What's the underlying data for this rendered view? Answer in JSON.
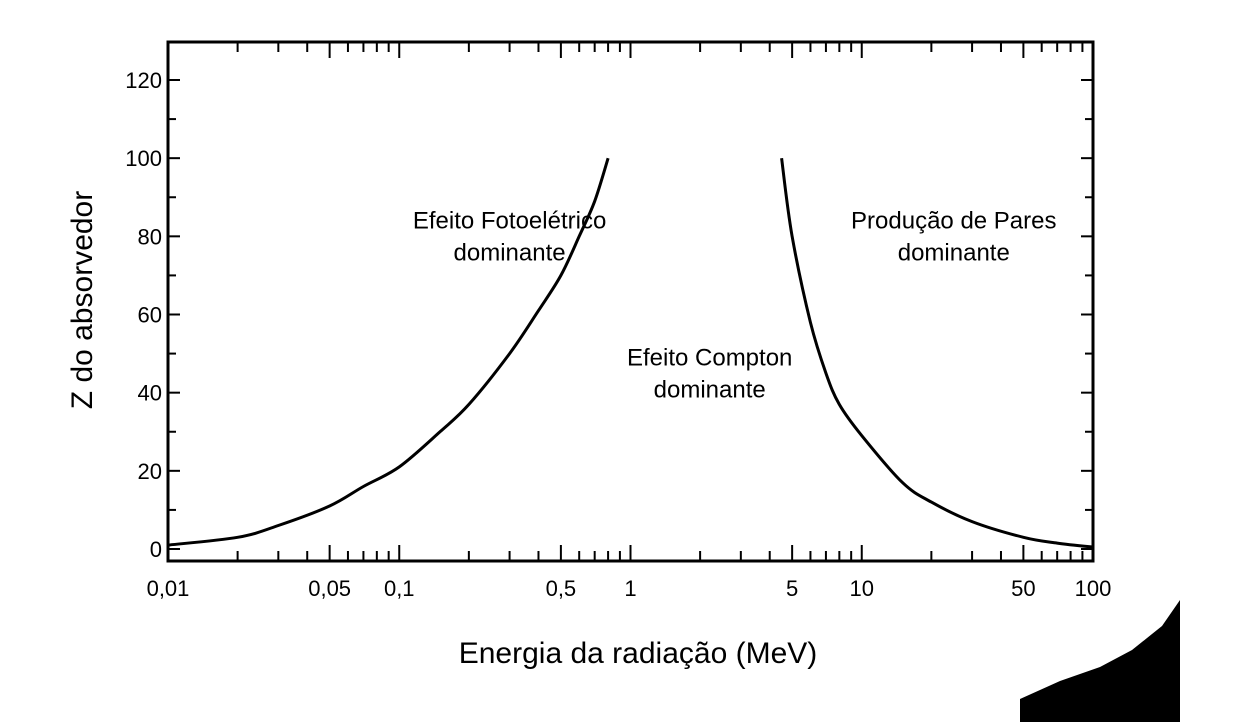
{
  "chart_data": {
    "type": "line",
    "xlabel": "Energia da radiação  (MeV)",
    "ylabel": "Z do absorvedor",
    "x_scale": "log",
    "xlim": [
      0.01,
      100
    ],
    "ylim": [
      0,
      120
    ],
    "x_tick_labels": [
      {
        "value": 0.01,
        "label": "0,01"
      },
      {
        "value": 0.05,
        "label": "0,05"
      },
      {
        "value": 0.1,
        "label": "0,1"
      },
      {
        "value": 0.5,
        "label": "0,5"
      },
      {
        "value": 1,
        "label": "1"
      },
      {
        "value": 5,
        "label": "5"
      },
      {
        "value": 10,
        "label": "10"
      },
      {
        "value": 50,
        "label": "50"
      },
      {
        "value": 100,
        "label": "100"
      }
    ],
    "y_ticks": [
      0,
      20,
      40,
      60,
      80,
      100,
      120
    ],
    "grid": false,
    "series": [
      {
        "x": [
          0.01,
          0.02,
          0.03,
          0.05,
          0.07,
          0.1,
          0.15,
          0.2,
          0.3,
          0.4,
          0.5,
          0.6,
          0.7,
          0.8
        ],
        "y": [
          1,
          3,
          6,
          11,
          16,
          21,
          30,
          37,
          50,
          61,
          70,
          80,
          89,
          100
        ]
      },
      {
        "x": [
          4.5,
          5,
          6,
          7,
          8,
          10,
          15,
          20,
          30,
          50,
          70,
          100
        ],
        "y": [
          100,
          80,
          58,
          45,
          37,
          29,
          17,
          12,
          7,
          3,
          1.5,
          0.5
        ]
      }
    ],
    "annotations": [
      {
        "lines": [
          "Efeito Fotoelétrico",
          "dominante"
        ],
        "x": 0.3,
        "y": 82
      },
      {
        "lines": [
          "Efeito Compton",
          "dominante"
        ],
        "x": 2.2,
        "y": 47
      },
      {
        "lines": [
          "Produção de Pares",
          "dominante"
        ],
        "x": 25,
        "y": 82
      }
    ]
  }
}
